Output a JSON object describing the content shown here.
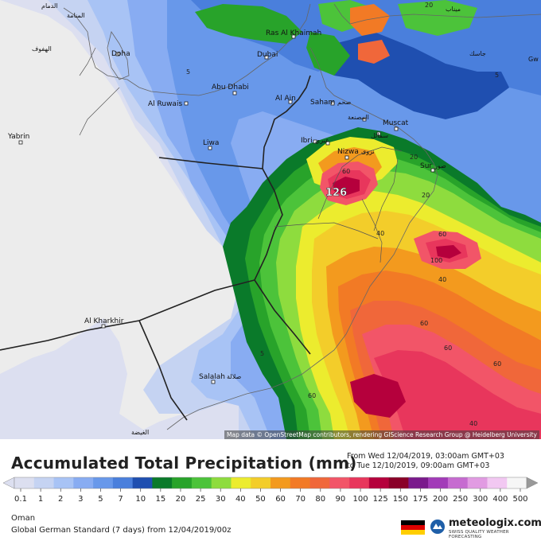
{
  "map": {
    "cities": [
      {
        "id": "doha",
        "label": "Doha"
      },
      {
        "id": "ras-al-khaimah",
        "label": "Ras Al Khaimah"
      },
      {
        "id": "dubai",
        "label": "Dubai"
      },
      {
        "id": "abu-dhabi",
        "label": "Abu Dhabi"
      },
      {
        "id": "al-ruwais",
        "label": "Al Ruwais"
      },
      {
        "id": "al-ain",
        "label": "Al Ain"
      },
      {
        "id": "saham",
        "label": "Saham"
      },
      {
        "id": "muscat",
        "label": "Muscat"
      },
      {
        "id": "ibri",
        "label": "Ibri"
      },
      {
        "id": "liwa",
        "label": "Liwa"
      },
      {
        "id": "nizwa",
        "label": "Nizwa"
      },
      {
        "id": "sur",
        "label": "Sur"
      },
      {
        "id": "yabrin",
        "label": "Yabrin"
      },
      {
        "id": "al-kharkhir",
        "label": "Al Kharkhir"
      },
      {
        "id": "salalah",
        "label": "Salalah"
      }
    ],
    "arabic_labels": [
      "الدمام",
      "المنامة",
      "الهفوف",
      "صحم",
      "المصنعة",
      "سمائل",
      "عبري",
      "نزوى",
      "صور",
      "صلالة",
      "الغيضة",
      "جاسك",
      "ميناب"
    ],
    "max_value_label": "126",
    "contour_values": [
      "5",
      "20",
      "60",
      "20",
      "40",
      "60",
      "100",
      "40",
      "60",
      "60",
      "60",
      "40",
      "60",
      "5",
      "5",
      "20"
    ],
    "gw_label": "Gw",
    "attribution": "Map data © OpenStreetMap contributors, rendering GIScience Research Group @ Heidelberg University"
  },
  "footer": {
    "title": "Accumulated Total Precipitation (mm)",
    "from_line": "From Wed 12/04/2019, 03:00am GMT+03",
    "to_line": "to Tue 12/10/2019, 09:00am GMT+03",
    "region": "Oman",
    "model_line": "Global German Standard (7 days) from 12/04/2019/00z",
    "brand_name": "meteologix.com",
    "brand_tagline": "SWISS QUALITY WEATHER FORECASTING"
  },
  "legend": {
    "labels": [
      "0.1",
      "1",
      "2",
      "3",
      "5",
      "7",
      "10",
      "15",
      "20",
      "25",
      "30",
      "40",
      "50",
      "60",
      "70",
      "80",
      "90",
      "100",
      "125",
      "150",
      "175",
      "200",
      "250",
      "300",
      "400",
      "500"
    ],
    "colors": [
      "#dcdff0",
      "#c5d3f2",
      "#a8c3f5",
      "#88acf2",
      "#6898ea",
      "#4a7fdc",
      "#1f4fb0",
      "#0a7a2a",
      "#28a32a",
      "#4cc33a",
      "#8edc3e",
      "#ecec2e",
      "#f3cd2a",
      "#f39a1e",
      "#f27a25",
      "#f0673a",
      "#f25568",
      "#e8365c",
      "#b5003c",
      "#8a0028",
      "#7a1a8c",
      "#a23bb8",
      "#c66bd0",
      "#e19be2",
      "#f2c8f2",
      "#f6f6f6"
    ]
  },
  "colors": {
    "background_land": "#ececec",
    "flag": [
      "#000000",
      "#dd0000",
      "#ffce00"
    ]
  }
}
